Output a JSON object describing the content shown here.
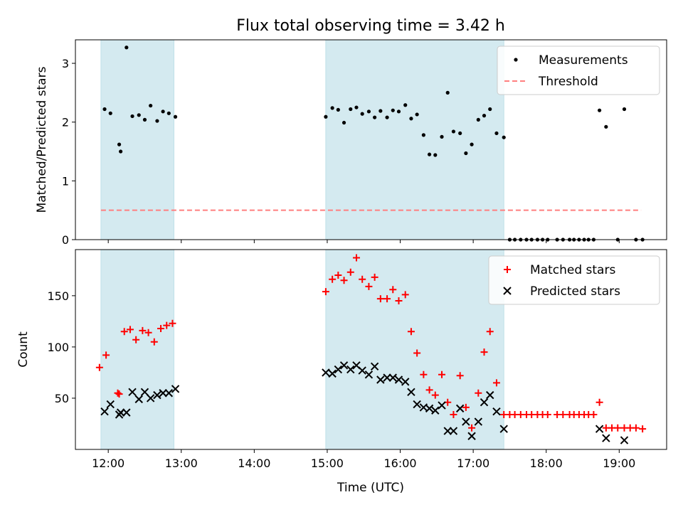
{
  "chart_data": {
    "title": "Flux total observing time = 3.42 h",
    "xlabel": "Time (UTC)",
    "x_unit": "hours UTC",
    "x_range": [
      11.55,
      19.65
    ],
    "x_ticks": [
      12,
      13,
      14,
      15,
      16,
      17,
      18,
      19
    ],
    "x_tick_labels": [
      "12:00",
      "13:00",
      "14:00",
      "15:00",
      "16:00",
      "17:00",
      "18:00",
      "19:00"
    ],
    "shaded_intervals": [
      [
        11.9,
        12.9
      ],
      [
        14.98,
        17.42
      ]
    ],
    "shade_color": "#d4eaf0",
    "panels": [
      {
        "type": "scatter",
        "ylabel": "Matched/Predicted stars",
        "ylim": [
          0,
          3.4
        ],
        "y_ticks": [
          0,
          1,
          2,
          3
        ],
        "legend_position": "top-right",
        "series": [
          {
            "name": "Measurements",
            "marker": "dot",
            "color": "#000000",
            "x": [
              11.95,
              12.03,
              12.15,
              12.17,
              12.25,
              12.33,
              12.42,
              12.5,
              12.58,
              12.67,
              12.75,
              12.83,
              12.92,
              14.98,
              15.07,
              15.15,
              15.23,
              15.32,
              15.4,
              15.48,
              15.57,
              15.65,
              15.73,
              15.82,
              15.9,
              15.98,
              16.07,
              16.15,
              16.23,
              16.32,
              16.4,
              16.48,
              16.57,
              16.65,
              16.73,
              16.82,
              16.9,
              16.98,
              17.07,
              17.15,
              17.23,
              17.32,
              17.42,
              17.5,
              17.57,
              17.65,
              17.73,
              17.8,
              17.88,
              17.95,
              18.02,
              18.15,
              18.23,
              18.32,
              18.38,
              18.45,
              18.52,
              18.58,
              18.65,
              18.73,
              18.82,
              18.98,
              19.07,
              19.23,
              19.32
            ],
            "y": [
              2.22,
              2.15,
              1.62,
              1.5,
              3.27,
              2.1,
              2.12,
              2.04,
              2.28,
              2.02,
              2.18,
              2.15,
              2.09,
              2.09,
              2.24,
              2.21,
              1.99,
              2.22,
              2.25,
              2.14,
              2.18,
              2.08,
              2.19,
              2.08,
              2.2,
              2.18,
              2.29,
              2.06,
              2.13,
              1.78,
              1.45,
              1.44,
              1.75,
              2.5,
              1.84,
              1.81,
              1.47,
              1.62,
              2.04,
              2.11,
              2.22,
              1.81,
              1.74,
              0,
              0,
              0,
              0,
              0,
              0,
              0,
              0,
              0,
              0,
              0,
              0,
              0,
              0,
              0,
              0,
              2.2,
              1.92,
              0,
              2.22,
              0,
              0
            ]
          },
          {
            "name": "Threshold",
            "type": "line",
            "style": "dashed",
            "color": "#ff7f7f",
            "x": [
              11.9,
              19.3
            ],
            "y": [
              0.5,
              0.5
            ]
          }
        ]
      },
      {
        "type": "scatter",
        "ylabel": "Count",
        "ylim": [
          0,
          195
        ],
        "y_ticks": [
          50,
          100,
          150
        ],
        "legend_position": "top-right",
        "series": [
          {
            "name": "Matched stars",
            "marker": "plus",
            "color": "#ff0000",
            "x": [
              11.88,
              11.97,
              12.13,
              12.15,
              12.22,
              12.3,
              12.38,
              12.47,
              12.55,
              12.63,
              12.72,
              12.8,
              12.88,
              14.98,
              15.07,
              15.15,
              15.23,
              15.32,
              15.4,
              15.48,
              15.57,
              15.65,
              15.73,
              15.82,
              15.9,
              15.98,
              16.07,
              16.15,
              16.23,
              16.32,
              16.4,
              16.48,
              16.57,
              16.65,
              16.73,
              16.82,
              16.9,
              16.98,
              17.07,
              17.15,
              17.23,
              17.32,
              17.42,
              17.5,
              17.57,
              17.65,
              17.73,
              17.8,
              17.88,
              17.95,
              18.02,
              18.15,
              18.23,
              18.32,
              18.38,
              18.45,
              18.52,
              18.58,
              18.65,
              18.73,
              18.82,
              18.9,
              18.98,
              19.07,
              19.15,
              19.23,
              19.32
            ],
            "y": [
              80,
              92,
              55,
              54,
              115,
              117,
              107,
              116,
              114,
              105,
              118,
              121,
              123,
              154,
              166,
              170,
              165,
              173,
              187,
              166,
              159,
              168,
              147,
              147,
              156,
              145,
              151,
              115,
              94,
              73,
              58,
              53,
              73,
              46,
              34,
              72,
              41,
              21,
              55,
              95,
              115,
              65,
              34,
              34,
              34,
              34,
              34,
              34,
              34,
              34,
              34,
              34,
              34,
              34,
              34,
              34,
              34,
              34,
              34,
              46,
              21,
              21,
              21,
              21,
              21,
              21,
              20
            ]
          },
          {
            "name": "Predicted stars",
            "marker": "x",
            "color": "#000000",
            "x": [
              11.95,
              12.03,
              12.15,
              12.17,
              12.25,
              12.33,
              12.42,
              12.5,
              12.58,
              12.67,
              12.75,
              12.83,
              12.92,
              14.98,
              15.07,
              15.15,
              15.23,
              15.32,
              15.4,
              15.48,
              15.57,
              15.65,
              15.73,
              15.82,
              15.9,
              15.98,
              16.07,
              16.15,
              16.23,
              16.32,
              16.4,
              16.48,
              16.57,
              16.65,
              16.73,
              16.82,
              16.9,
              16.98,
              17.07,
              17.15,
              17.23,
              17.32,
              17.42,
              18.73,
              18.82,
              19.07
            ],
            "y": [
              37,
              44,
              34,
              36,
              36,
              56,
              49,
              56,
              50,
              53,
              55,
              55,
              59,
              75,
              74,
              78,
              82,
              78,
              82,
              77,
              73,
              81,
              68,
              70,
              70,
              68,
              66,
              56,
              44,
              41,
              40,
              38,
              43,
              18,
              18,
              40,
              27,
              13,
              27,
              46,
              53,
              37,
              20,
              20,
              11,
              9
            ]
          }
        ]
      }
    ]
  }
}
